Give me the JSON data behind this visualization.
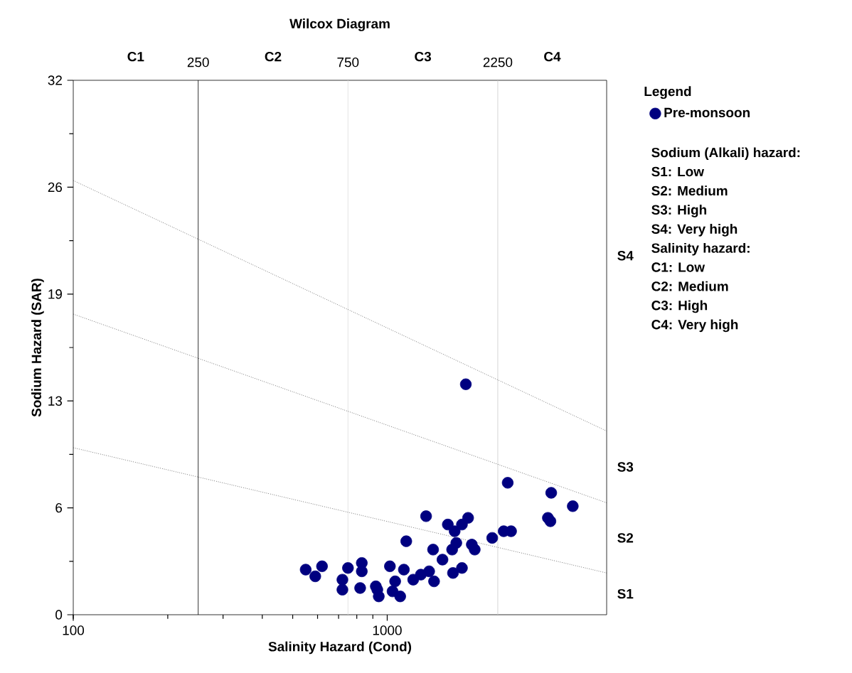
{
  "chart_data": {
    "type": "scatter",
    "title": "Wilcox Diagram",
    "xlabel": "Salinity Hazard (Cond)",
    "ylabel": "Sodium Hazard (SAR)",
    "legend_title": "Legend",
    "log": "x",
    "xlim": [
      100,
      5000
    ],
    "xticks": [
      100,
      1000
    ],
    "ylim": [
      0,
      32
    ],
    "yticks": [
      0,
      {
        "value": 6.4,
        "label": "6"
      },
      {
        "value": 12.8,
        "label": "13"
      },
      {
        "value": 19.2,
        "label": "19"
      },
      {
        "value": 25.6,
        "label": "26"
      },
      32
    ],
    "grid": false,
    "legend": "right",
    "series": [
      {
        "name": "Pre-monsoon",
        "marker": "circle",
        "color": "#000080",
        "x": [
          1780,
          2420,
          3330,
          3900,
          3250,
          3310,
          2350,
          2480,
          2160,
          1330,
          1810,
          1560,
          1730,
          1640,
          1150,
          1660,
          1610,
          1860,
          1900,
          1400,
          1500,
          1620,
          1730,
          1360,
          1280,
          1210,
          1410,
          1130,
          1020,
          1060,
          1040,
          1100,
          920,
          930,
          940,
          830,
          830,
          820,
          750,
          720,
          720,
          620,
          550,
          590
        ],
        "values": [
          13.8,
          7.9,
          7.3,
          6.5,
          5.8,
          5.6,
          5.0,
          5.0,
          4.6,
          5.9,
          5.8,
          5.4,
          5.4,
          5.0,
          4.4,
          4.3,
          3.9,
          4.2,
          3.9,
          3.9,
          3.3,
          2.5,
          2.8,
          2.6,
          2.4,
          2.1,
          2.0,
          2.7,
          2.9,
          2.0,
          1.4,
          1.1,
          1.7,
          1.5,
          1.1,
          3.1,
          2.6,
          1.6,
          2.8,
          2.1,
          1.5,
          2.9,
          2.7,
          2.3
        ]
      },
      {
        "type": "line",
        "marker": "none",
        "color": "#333333",
        "line_style": "dotted",
        "x": [
          100,
          5000
        ],
        "values": [
          10,
          2.5
        ]
      },
      {
        "type": "line",
        "marker": "none",
        "color": "#333333",
        "line_style": "dotted",
        "x": [
          100,
          5000
        ],
        "values": [
          18,
          6.7
        ]
      },
      {
        "type": "line",
        "marker": "none",
        "color": "#333333",
        "line_style": "dotted",
        "x": [
          100,
          5000
        ],
        "values": [
          26,
          11.0
        ]
      }
    ],
    "ref_lines": [
      {
        "axis": "x",
        "value": 250,
        "label": "250",
        "color": "#000000"
      },
      {
        "axis": "x",
        "value": 750,
        "label": "750",
        "color": "#dddddd"
      },
      {
        "axis": "x",
        "value": 2250,
        "label": "2250",
        "color": "#cccccc"
      }
    ],
    "annotations": [
      "C1",
      "C2",
      "C3",
      "C4",
      "S1",
      "S2",
      "S3",
      "S4",
      "Sodium (Alkali) hazard:",
      "S1: Low",
      "S2: Medium",
      "S3: High",
      "S4: Very high",
      "Salinity hazard:",
      "C1: Low",
      "C2: Medium",
      "C3: High",
      "C4: Very high"
    ]
  }
}
